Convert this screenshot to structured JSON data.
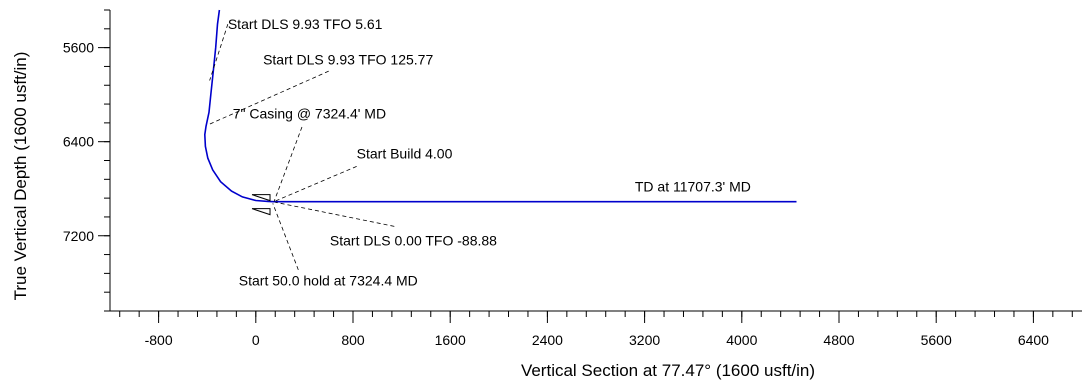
{
  "chart_data": {
    "type": "line",
    "title": "",
    "xlabel": "Vertical Section at 77.47° (1600 usft/in)",
    "ylabel": "True Vertical Depth (1600 usft/in)",
    "xlim": [
      -1200,
      6800
    ],
    "ylim": [
      5280,
      7840
    ],
    "y_inverted": true,
    "x_ticks": [
      -800,
      0,
      800,
      1600,
      2400,
      3200,
      4000,
      4800,
      5600,
      6400
    ],
    "y_ticks": [
      5600,
      6400,
      7200
    ],
    "x_minor_step": 160,
    "y_minor_step": 160,
    "grid": false,
    "series": [
      {
        "color": "#0000cc",
        "points": [
          [
            -300,
            5280
          ],
          [
            -315,
            5400
          ],
          [
            -330,
            5600
          ],
          [
            -350,
            5800
          ],
          [
            -370,
            6000
          ],
          [
            -385,
            6150
          ],
          [
            -410,
            6270
          ],
          [
            -420,
            6340
          ],
          [
            -415,
            6440
          ],
          [
            -395,
            6540
          ],
          [
            -355,
            6640
          ],
          [
            -290,
            6740
          ],
          [
            -200,
            6820
          ],
          [
            -110,
            6870
          ],
          [
            0,
            6900
          ],
          [
            100,
            6908
          ],
          [
            150,
            6910
          ],
          [
            4450,
            6910
          ]
        ]
      }
    ],
    "annotations": [
      {
        "text": "Start DLS 9.93 TFO 5.61",
        "text_at": [
          -230,
          5400
        ],
        "line": [
          [
            -230,
            5400
          ],
          [
            -380,
            5880
          ]
        ]
      },
      {
        "text": "Start DLS 9.93 TFO 125.77",
        "text_at": [
          60,
          5700
        ],
        "line": [
          [
            600,
            5800
          ],
          [
            -400,
            6260
          ]
        ]
      },
      {
        "text": "7\" Casing @ 7324.4' MD",
        "text_at": [
          -190,
          6160
        ],
        "line": [
          [
            380,
            6275
          ],
          [
            150,
            6910
          ]
        ]
      },
      {
        "text": "Start Build 4.00",
        "text_at": [
          830,
          6500
        ],
        "line": [
          [
            830,
            6610
          ],
          [
            160,
            6905
          ]
        ]
      },
      {
        "text": "TD at 11707.3' MD",
        "text_at": [
          3120,
          6780
        ],
        "line": null
      },
      {
        "text": "Start DLS 0.00 TFO -88.88",
        "text_at": [
          610,
          7240
        ],
        "line": [
          [
            1140,
            7120
          ],
          [
            160,
            6915
          ]
        ]
      },
      {
        "text": "Start 50.0 hold at 7324.4 MD",
        "text_at": [
          -140,
          7580
        ],
        "line": [
          [
            350,
            7490
          ],
          [
            140,
            6925
          ]
        ]
      }
    ],
    "markers": [
      {
        "type": "casing",
        "at": [
          150,
          6910
        ]
      }
    ]
  }
}
